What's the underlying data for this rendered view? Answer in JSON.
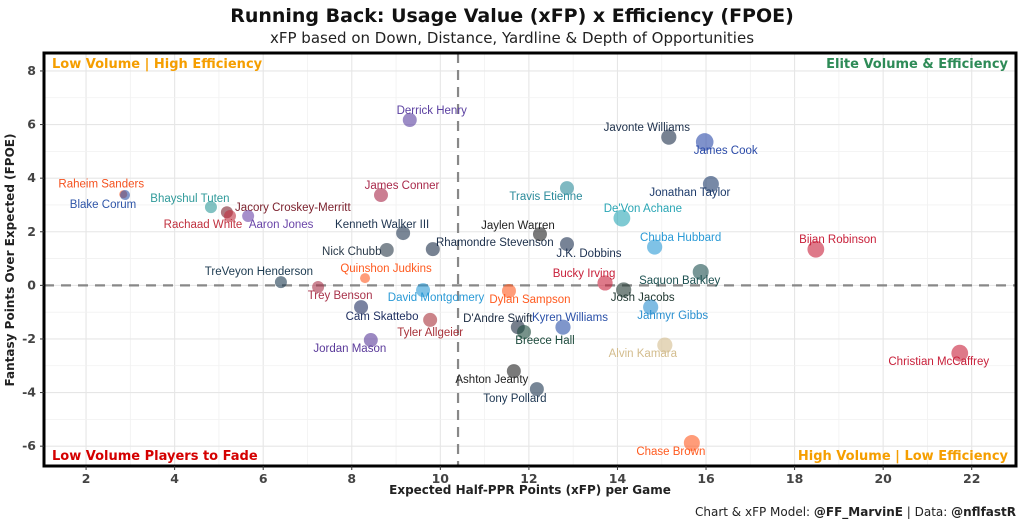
{
  "chart_data": {
    "type": "scatter",
    "title": "Running Back: Usage Value (xFP) x Efficiency (FPOE)",
    "subtitle": "xFP based on Down, Distance, Yardline & Depth of Opportunities",
    "xlabel": "Expected Half-PPR Points (xFP) per Game",
    "ylabel": "Fantasy Points Over Expected (FPOE)",
    "xlim": [
      1.05,
      23.0
    ],
    "ylim": [
      -6.74,
      8.67
    ],
    "xticks": [
      2,
      4,
      6,
      8,
      10,
      12,
      14,
      16,
      18,
      20,
      22
    ],
    "yticks": [
      -6,
      -4,
      -2,
      0,
      2,
      4,
      6,
      8
    ],
    "grid": true,
    "reference_lines": {
      "x": 10.4,
      "y": 0
    },
    "quadrant_labels": [
      {
        "text": "Low Volume | High Efficiency",
        "corner": "top-left",
        "color": "#f59e00"
      },
      {
        "text": "Elite Volume & Efficiency",
        "corner": "top-right",
        "color": "#2e8b57"
      },
      {
        "text": "Low Volume Players to Fade",
        "corner": "bottom-left",
        "color": "#d40000"
      },
      {
        "text": "High Volume | Low Efficiency",
        "corner": "bottom-right",
        "color": "#f59e00"
      }
    ],
    "points": [
      {
        "name": "Raheim Sanders",
        "x": 2.84,
        "y": 3.4,
        "size": 1,
        "color": "#f4511e"
      },
      {
        "name": "Blake Corum",
        "x": 2.88,
        "y": 3.37,
        "size": 1.5,
        "color": "#2e55a8"
      },
      {
        "name": "Bhayshul Tuten",
        "x": 4.82,
        "y": 2.92,
        "size": 2,
        "color": "#2f9a9a"
      },
      {
        "name": "Jacory Croskey-Merritt",
        "x": 5.18,
        "y": 2.73,
        "size": 2,
        "color": "#7a1f2b"
      },
      {
        "name": "Rachaad White",
        "x": 5.25,
        "y": 2.59,
        "size": 2,
        "color": "#c0313f"
      },
      {
        "name": "Aaron Jones",
        "x": 5.66,
        "y": 2.59,
        "size": 2,
        "color": "#6a45a8"
      },
      {
        "name": "Derrick Henry",
        "x": 9.31,
        "y": 6.17,
        "size": 2.5,
        "color": "#5a3fa0"
      },
      {
        "name": "James Conner",
        "x": 8.66,
        "y": 3.37,
        "size": 2.5,
        "color": "#a8284a"
      },
      {
        "name": "Kenneth Walker III",
        "x": 9.16,
        "y": 1.95,
        "size": 2.5,
        "color": "#1f3550"
      },
      {
        "name": "Nick Chubb",
        "x": 8.79,
        "y": 1.32,
        "size": 2.5,
        "color": "#2a3a4a"
      },
      {
        "name": "Rhamondre Stevenson",
        "x": 9.83,
        "y": 1.35,
        "size": 2.5,
        "color": "#1c2f4a"
      },
      {
        "name": "TreVeyon Henderson",
        "x": 6.4,
        "y": 0.12,
        "size": 2,
        "color": "#1c3a50"
      },
      {
        "name": "Trey Benson",
        "x": 7.24,
        "y": -0.06,
        "size": 2,
        "color": "#a8324a"
      },
      {
        "name": "Quinshon Judkins",
        "x": 8.3,
        "y": 0.27,
        "size": 1.5,
        "color": "#ff5a1f"
      },
      {
        "name": "David Montgomery",
        "x": 9.61,
        "y": -0.18,
        "size": 2.5,
        "color": "#2a9ad6"
      },
      {
        "name": "Cam Skattebo",
        "x": 8.21,
        "y": -0.81,
        "size": 2.5,
        "color": "#1f2f60"
      },
      {
        "name": "Tyler Allgeier",
        "x": 9.77,
        "y": -1.29,
        "size": 2.5,
        "color": "#a8323a"
      },
      {
        "name": "Jordan Mason",
        "x": 8.43,
        "y": -2.04,
        "size": 2.5,
        "color": "#5a3a9a"
      },
      {
        "name": "Dylan Sampson",
        "x": 11.55,
        "y": -0.21,
        "size": 2.5,
        "color": "#ff5a1f"
      },
      {
        "name": "D'Andre Swift",
        "x": 11.75,
        "y": -1.56,
        "size": 2.5,
        "color": "#1a2a40"
      },
      {
        "name": "Breece Hall",
        "x": 11.89,
        "y": -1.74,
        "size": 2.5,
        "color": "#1c4a3c"
      },
      {
        "name": "Ashton Jeanty",
        "x": 11.66,
        "y": -3.2,
        "size": 2.5,
        "color": "#222222"
      },
      {
        "name": "Tony Pollard",
        "x": 12.18,
        "y": -3.87,
        "size": 2.5,
        "color": "#1c3550"
      },
      {
        "name": "Kyren Williams",
        "x": 12.77,
        "y": -1.56,
        "size": 2.8,
        "color": "#2a50a8"
      },
      {
        "name": "Jaylen Warren",
        "x": 12.25,
        "y": 1.91,
        "size": 2.5,
        "color": "#222222"
      },
      {
        "name": "J.K. Dobbins",
        "x": 12.86,
        "y": 1.54,
        "size": 2.5,
        "color": "#1c3050"
      },
      {
        "name": "Travis Etienne",
        "x": 12.86,
        "y": 3.63,
        "size": 2.5,
        "color": "#2a8a9a"
      },
      {
        "name": "De'Von Achane",
        "x": 14.1,
        "y": 2.51,
        "size": 3.2,
        "color": "#2aa6b5"
      },
      {
        "name": "Javonte Williams",
        "x": 15.16,
        "y": 5.53,
        "size": 2.8,
        "color": "#1c2f4a"
      },
      {
        "name": "James Cook",
        "x": 15.97,
        "y": 5.35,
        "size": 3.4,
        "color": "#2a4aa8"
      },
      {
        "name": "Jonathan Taylor",
        "x": 16.11,
        "y": 3.78,
        "size": 3,
        "color": "#1c3a6a"
      },
      {
        "name": "Chuba Hubbard",
        "x": 14.84,
        "y": 1.43,
        "size": 2.8,
        "color": "#2a9ad6"
      },
      {
        "name": "Bucky Irving",
        "x": 13.72,
        "y": 0.09,
        "size": 2.8,
        "color": "#c8203a"
      },
      {
        "name": "Josh Jacobs",
        "x": 14.14,
        "y": -0.17,
        "size": 2.8,
        "color": "#203731"
      },
      {
        "name": "Saquon Barkley",
        "x": 15.88,
        "y": 0.5,
        "size": 3,
        "color": "#1c5050"
      },
      {
        "name": "Jahmyr Gibbs",
        "x": 14.75,
        "y": -0.81,
        "size": 2.8,
        "color": "#2a90d0"
      },
      {
        "name": "Alvin Kamara",
        "x": 15.07,
        "y": -2.23,
        "size": 2.8,
        "color": "#d3bc8d"
      },
      {
        "name": "Chase Brown",
        "x": 15.68,
        "y": -5.88,
        "size": 3,
        "color": "#ff5a1f"
      },
      {
        "name": "Bijan Robinson",
        "x": 18.48,
        "y": 1.35,
        "size": 3.2,
        "color": "#c8203a"
      },
      {
        "name": "Christian McCaffrey",
        "x": 21.73,
        "y": -2.53,
        "size": 3.2,
        "color": "#c8203a"
      }
    ]
  },
  "footer": {
    "credit_prefix": "Chart & xFP Model: ",
    "credit_handle": "@FF_MarvinE",
    "separator": " | Data: ",
    "data_handle": "@nflfastR"
  }
}
